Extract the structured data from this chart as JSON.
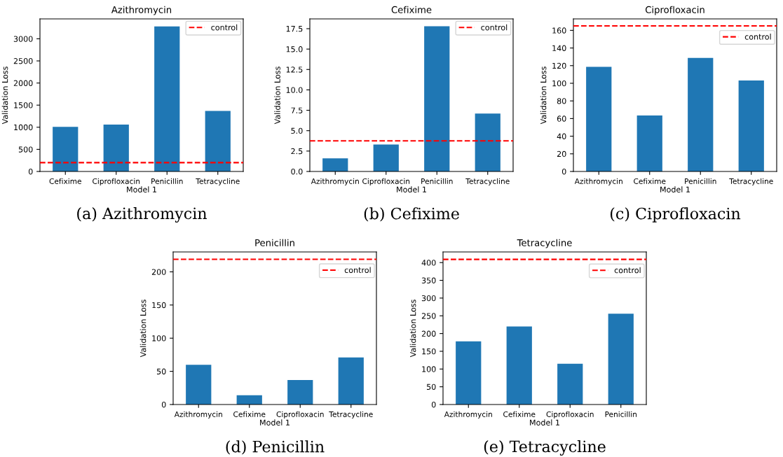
{
  "chart_data": [
    {
      "type": "bar",
      "title": "Azithromycin",
      "xlabel": "Model 1",
      "ylabel": "Validation Loss",
      "categories": [
        "Cefixime",
        "Ciprofloxacin",
        "Penicillin",
        "Tetracycline"
      ],
      "values": [
        1010,
        1060,
        3280,
        1370
      ],
      "color": "#1f77b4",
      "ylim": [
        0,
        3450
      ],
      "yticks": [
        0,
        500,
        1000,
        1500,
        2000,
        2500,
        3000
      ],
      "grid": false,
      "legend": "top right",
      "ref_lines": [
        {
          "axis": "y",
          "value": 200,
          "label": "control",
          "color": "#ff0000",
          "line_style": "dashed"
        }
      ],
      "annotations": [
        "(a) Azithromycin"
      ]
    },
    {
      "type": "bar",
      "title": "Cefixime",
      "xlabel": "Model 1",
      "ylabel": "Validation Loss",
      "categories": [
        "Azithromycin",
        "Ciprofloxacin",
        "Penicillin",
        "Tetracycline"
      ],
      "values": [
        1.6,
        3.3,
        17.8,
        7.1
      ],
      "color": "#1f77b4",
      "ylim": [
        0,
        18.7
      ],
      "yticks": [
        {
          "value": 0,
          "label": "0.0"
        },
        2.5,
        {
          "value": 5,
          "label": "5.0"
        },
        7.5,
        {
          "value": 10,
          "label": "10.0"
        },
        12.5,
        {
          "value": 15,
          "label": "15.0"
        },
        17.5
      ],
      "grid": false,
      "legend": "top right",
      "ref_lines": [
        {
          "axis": "y",
          "value": 3.75,
          "label": "control",
          "color": "#ff0000",
          "line_style": "dashed"
        }
      ],
      "annotations": [
        "(b) Cefixime"
      ]
    },
    {
      "type": "bar",
      "title": "Ciprofloxacin",
      "xlabel": "Model 1",
      "ylabel": "Validation Loss",
      "categories": [
        "Azithromycin",
        "Cefixime",
        "Penicillin",
        "Tetracycline"
      ],
      "values": [
        118.7,
        63.5,
        128.7,
        103.2
      ],
      "color": "#1f77b4",
      "ylim": [
        0,
        173
      ],
      "yticks": [
        0,
        20,
        40,
        60,
        80,
        100,
        120,
        140,
        160
      ],
      "grid": false,
      "legend": "top right",
      "ref_lines": [
        {
          "axis": "y",
          "value": 165,
          "label": "control",
          "color": "#ff0000",
          "line_style": "dashed"
        }
      ],
      "annotations": [
        "(c) Ciprofloxacin"
      ]
    },
    {
      "type": "bar",
      "title": "Penicillin",
      "xlabel": "Model 1",
      "ylabel": "Validation Loss",
      "categories": [
        "Azithromycin",
        "Cefixime",
        "Ciprofloxacin",
        "Tetracycline"
      ],
      "values": [
        60,
        14,
        37,
        71
      ],
      "color": "#1f77b4",
      "ylim": [
        0,
        230
      ],
      "yticks": [
        0,
        50,
        100,
        150,
        200
      ],
      "grid": false,
      "legend": "top right",
      "ref_lines": [
        {
          "axis": "y",
          "value": 219,
          "label": "control",
          "color": "#ff0000",
          "line_style": "dashed"
        }
      ],
      "annotations": [
        "(d) Penicillin"
      ]
    },
    {
      "type": "bar",
      "title": "Tetracycline",
      "xlabel": "Model 1",
      "ylabel": "Validation Loss",
      "categories": [
        "Azithromycin",
        "Cefixime",
        "Ciprofloxacin",
        "Penicillin"
      ],
      "values": [
        178,
        220,
        115,
        256
      ],
      "color": "#1f77b4",
      "ylim": [
        0,
        430
      ],
      "yticks": [
        0,
        50,
        100,
        150,
        200,
        250,
        300,
        350,
        400
      ],
      "grid": false,
      "legend": "top right",
      "ref_lines": [
        {
          "axis": "y",
          "value": 409,
          "label": "control",
          "color": "#ff0000",
          "line_style": "dashed"
        }
      ],
      "annotations": [
        "(e) Tetracycline"
      ]
    }
  ]
}
